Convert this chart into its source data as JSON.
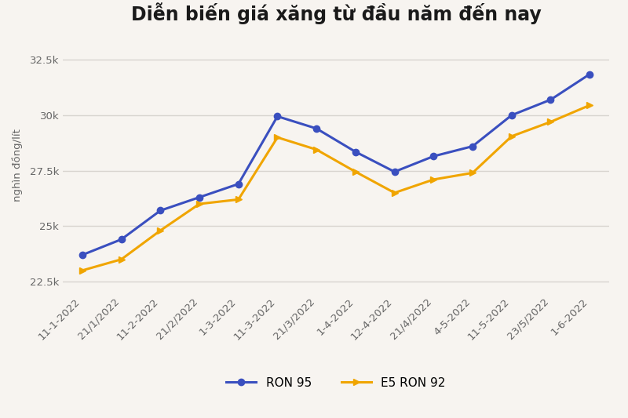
{
  "title": "Diễn biến giá xăng từ đầu năm đến nay",
  "ylabel": "nghìn đồng/lít",
  "x_labels": [
    "11-1-2022",
    "21/1/2022",
    "11-2-2022",
    "21/2/2022",
    "1-3-2022",
    "11-3-2022",
    "21/3/2022",
    "1-4-2022",
    "12-4-2022",
    "21/4/2022",
    "4-5-2022",
    "11-5-2022",
    "23/5/2022",
    "1-6-2022"
  ],
  "ron95": [
    23700,
    24400,
    25700,
    26300,
    26900,
    29950,
    29400,
    28350,
    27450,
    28150,
    28600,
    30000,
    30700,
    31850
  ],
  "e5ron92": [
    23000,
    23500,
    24800,
    26000,
    26200,
    29000,
    28450,
    27450,
    26500,
    27100,
    27400,
    29050,
    29700,
    30450
  ],
  "ron95_color": "#3a4fbf",
  "e5ron92_color": "#f0a500",
  "background_color": "#f7f4f0",
  "plot_bg_color": "#f7f4f0",
  "grid_color": "#d8d4cf",
  "ylim_min": 22000,
  "ylim_max": 33500,
  "yticks": [
    22500,
    25000,
    27500,
    30000,
    32500
  ],
  "ytick_labels": [
    "22.5k",
    "25k",
    "27.5k",
    "30k",
    "32.5k"
  ],
  "legend_ron95": "RON 95",
  "legend_e5ron92": "E5 RON 92",
  "title_fontsize": 17,
  "axis_fontsize": 9.5,
  "legend_fontsize": 11
}
